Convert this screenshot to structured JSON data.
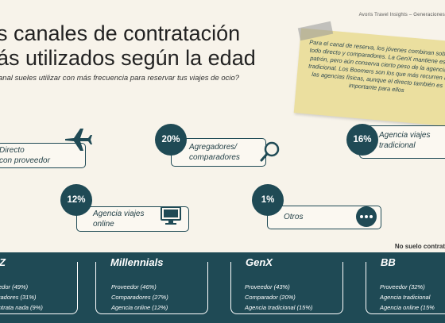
{
  "header": {
    "brand": "Avoris Travel Insights – Generaciones",
    "title_line1": "s canales de contratación",
    "title_line2": "ás utilizados según la edad",
    "subtitle": "anal sueles utilizar con más frecuencia para reservar tus viajes de ocio?"
  },
  "note": {
    "text": "Para el canal de reserva, los jóvenes combinan sobre todo directo y comparadores. La GenX mantiene ese patrón, pero aún conserva cierto peso de la agencia tradicional. Los Boomers son los que más recurren a las agencias físicas, aunque el directo también es importante para ellos"
  },
  "channels": [
    {
      "id": "directo",
      "label_l1": "Directo",
      "label_l2": "con proveedor",
      "icon": "airplane-icon"
    },
    {
      "id": "agregadores",
      "percent": "20%",
      "label_l1": "Agregadores/",
      "label_l2": "comparadores",
      "icon": "magnifier-icon"
    },
    {
      "id": "agencia-tradicional",
      "percent": "16%",
      "label_l1": "Agencia viajes",
      "label_l2": "tradicional",
      "icon": "storefront-icon"
    },
    {
      "id": "agencia-online",
      "percent": "12%",
      "label_l1": "Agencia viajes",
      "label_l2": "online",
      "icon": "monitor-icon"
    },
    {
      "id": "otros",
      "percent": "1%",
      "label_l1": "Otros",
      "label_l2": "",
      "icon": "more-dots-icon"
    }
  ],
  "footnote": "No suelo contrat",
  "generations": [
    {
      "name": "Z",
      "items": [
        "edor (49%)",
        "radores (31%)",
        "ntrata nada (9%)"
      ]
    },
    {
      "name": "Millennials",
      "items": [
        "Proveedor (46%)",
        "Comparadores (27%)",
        "Agencia online (12%)"
      ]
    },
    {
      "name": "GenX",
      "items": [
        "Proveedor (43%)",
        "Comparador (20%)",
        "Agencia tradicional (15%)"
      ]
    },
    {
      "name": "BB",
      "items": [
        "Proveedor (32%)",
        "Agencia tradicional",
        "Agencia online (15%"
      ]
    }
  ],
  "colors": {
    "accent": "#1f4a55",
    "note": "#ebdf9f",
    "background": "#f7f3ea"
  }
}
